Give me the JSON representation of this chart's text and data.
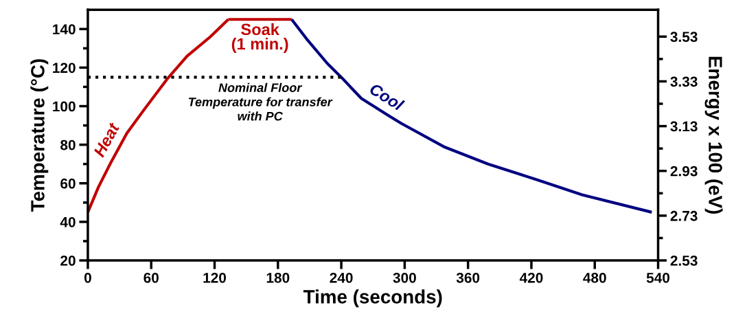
{
  "chart_data": {
    "type": "line",
    "xlabel": "Time (seconds)",
    "ylabel": "Temperature (°C)",
    "y2label": "Energy x 100 (eV)",
    "xlim": [
      0,
      540
    ],
    "xticks": [
      0,
      60,
      120,
      180,
      240,
      300,
      360,
      420,
      480,
      540
    ],
    "ylim": [
      20,
      150
    ],
    "yticks": [
      20,
      40,
      60,
      80,
      100,
      120,
      140
    ],
    "y2lim": [
      2.53,
      3.65
    ],
    "y2ticks": [
      2.53,
      2.73,
      2.93,
      3.13,
      3.33,
      3.53
    ],
    "grid": false,
    "legend": false,
    "marker": "none",
    "series": [
      {
        "name": "Heat",
        "color": "#c00000",
        "x": [
          0,
          10,
          22,
          37,
          53,
          75,
          94,
          116,
          133
        ],
        "values": [
          45,
          58,
          71,
          86,
          98,
          114,
          126,
          136,
          145
        ]
      },
      {
        "name": "Soak\n(1 min.)",
        "color": "#c00000",
        "x": [
          133,
          193
        ],
        "values": [
          145,
          145
        ]
      },
      {
        "name": "Cool",
        "color": "#000080",
        "x": [
          193,
          207,
          227,
          240,
          259,
          285,
          297,
          337,
          379,
          430,
          468,
          534
        ],
        "values": [
          145,
          135,
          122,
          115,
          104,
          95,
          91,
          79,
          70,
          61,
          54,
          45
        ]
      },
      {
        "color": "#000000",
        "line_style": "dotted",
        "x": [
          0,
          240
        ],
        "values": [
          115,
          115
        ]
      }
    ],
    "annotations": [
      {
        "text": "Nominal Floor\nTemperature for transfer\nwith PC",
        "x": 163,
        "y": 115
      }
    ]
  }
}
